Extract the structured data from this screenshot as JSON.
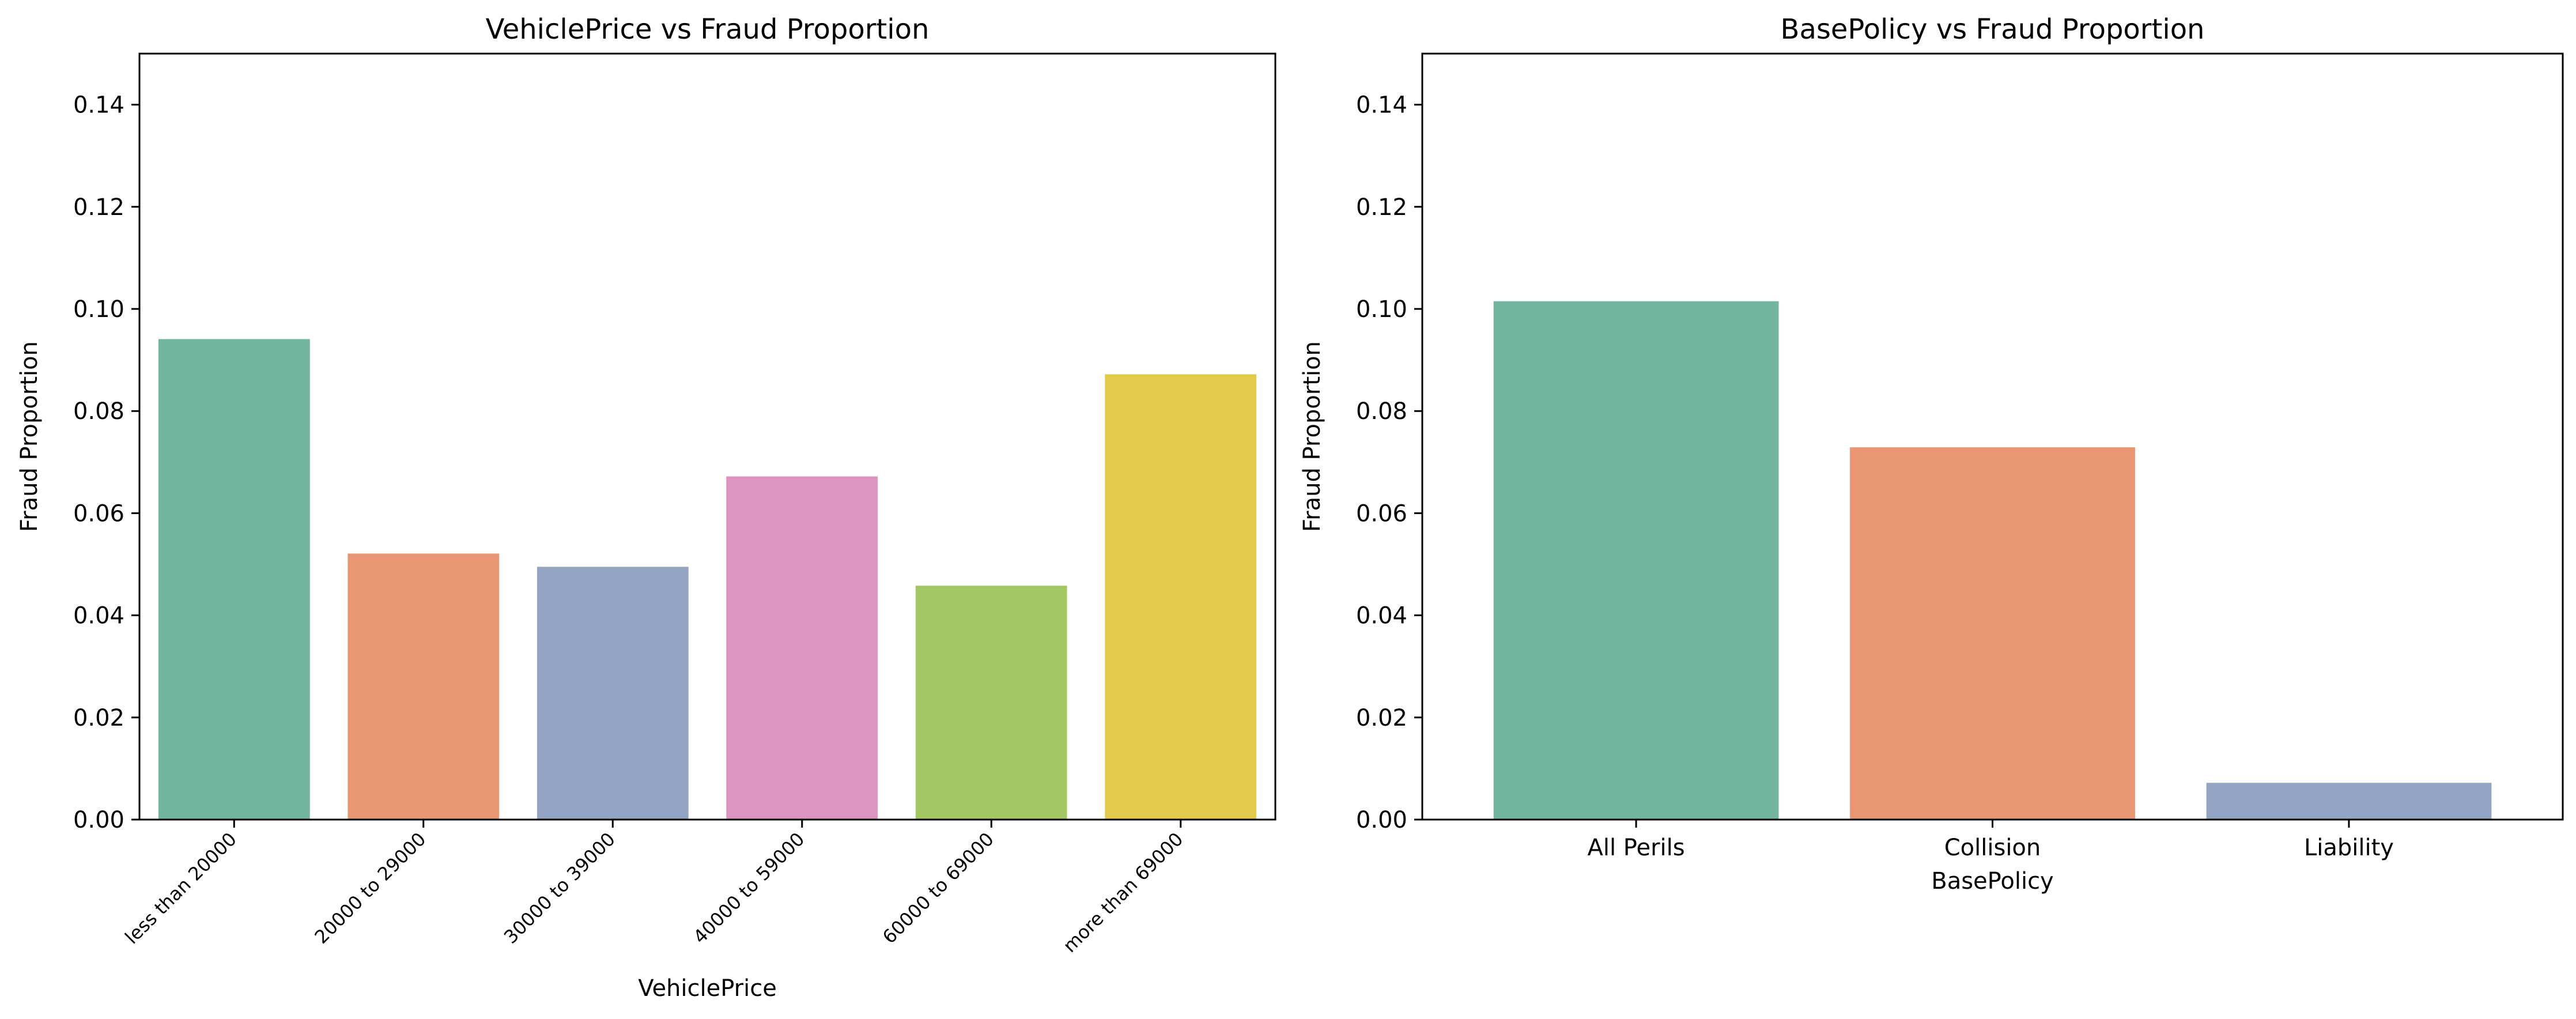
{
  "chart_data": [
    {
      "type": "bar",
      "title": "VehiclePrice vs Fraud Proportion",
      "xlabel": "VehiclePrice",
      "ylabel": "Fraud Proportion",
      "ylim": [
        0,
        0.15
      ],
      "yticks": [
        0.0,
        0.02,
        0.04,
        0.06,
        0.08,
        0.1,
        0.12,
        0.14
      ],
      "ytick_labels": [
        "0.00",
        "0.02",
        "0.04",
        "0.06",
        "0.08",
        "0.10",
        "0.12",
        "0.14"
      ],
      "categories": [
        "less than 20000",
        "20000 to 29000",
        "30000 to 39000",
        "40000 to 59000",
        "60000 to 69000",
        "more than 69000"
      ],
      "values": [
        0.0941,
        0.0521,
        0.0495,
        0.0672,
        0.0458,
        0.0872
      ],
      "colors": [
        "#73b49f",
        "#e99675",
        "#94a4c3",
        "#dc95c0",
        "#a3c763",
        "#e3ca4b"
      ],
      "grid": false,
      "rotated_xticks": true
    },
    {
      "type": "bar",
      "title": "BasePolicy vs Fraud Proportion",
      "xlabel": "BasePolicy",
      "ylabel": "Fraud Proportion",
      "ylim": [
        0,
        0.15
      ],
      "yticks": [
        0.0,
        0.02,
        0.04,
        0.06,
        0.08,
        0.1,
        0.12,
        0.14
      ],
      "ytick_labels": [
        "0.00",
        "0.02",
        "0.04",
        "0.06",
        "0.08",
        "0.10",
        "0.12",
        "0.14"
      ],
      "categories": [
        "All Perils",
        "Collision",
        "Liability"
      ],
      "values": [
        0.1015,
        0.0729,
        0.0072
      ],
      "colors": [
        "#73b49f",
        "#e99675",
        "#94a4c3"
      ],
      "grid": false,
      "rotated_xticks": false
    }
  ]
}
